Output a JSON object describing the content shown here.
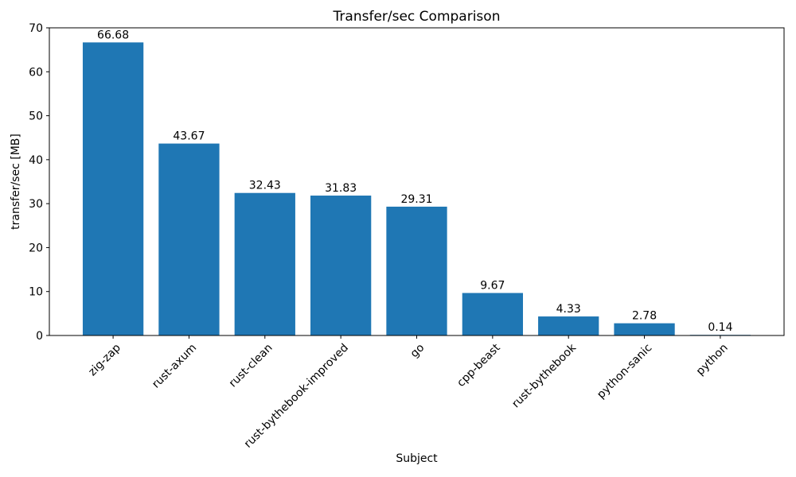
{
  "chart_data": {
    "type": "bar",
    "title": "Transfer/sec Comparison",
    "xlabel": "Subject",
    "ylabel": "transfer/sec [MB]",
    "categories": [
      "zig-zap",
      "rust-axum",
      "rust-clean",
      "rust-bythebook-improved",
      "go",
      "cpp-beast",
      "rust-bythebook",
      "python-sanic",
      "python"
    ],
    "values": [
      66.68,
      43.67,
      32.43,
      31.83,
      29.31,
      9.67,
      4.33,
      2.78,
      0.14
    ],
    "value_labels": [
      "66.68",
      "43.67",
      "32.43",
      "31.83",
      "29.31",
      "9.67",
      "4.33",
      "2.78",
      "0.14"
    ],
    "ylim": [
      0,
      70
    ],
    "yticks": [
      0,
      10,
      20,
      30,
      40,
      50,
      60,
      70
    ],
    "bar_color": "#1f77b4",
    "axis_color": "#000000",
    "background_color": "#ffffff",
    "grid": false,
    "legend": "none",
    "x_tick_rotation_deg": 45
  }
}
